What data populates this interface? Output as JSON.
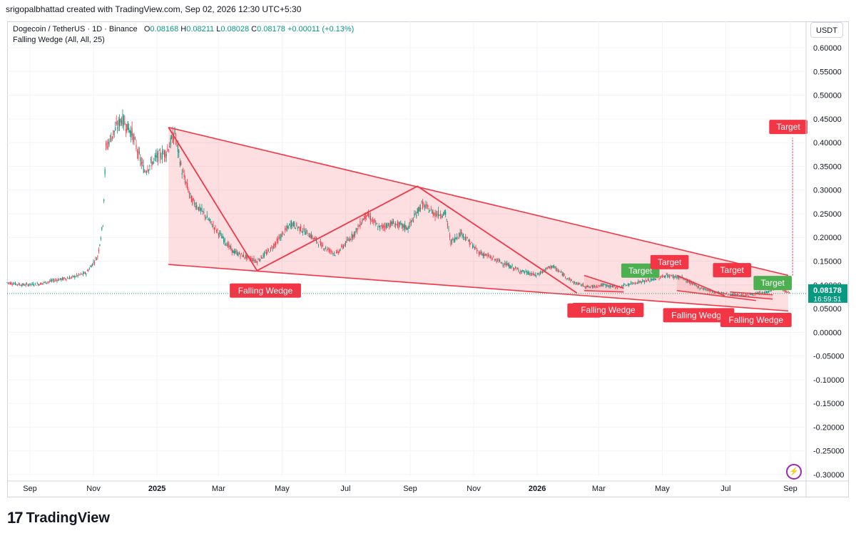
{
  "attribution": "srigopalbhattad created with TradingView.com, Sep 02, 2026 12:30 UTC+5:30",
  "legend": {
    "symbol": "Dogecoin / TetherUS · 1D · Binance",
    "o_label": "O",
    "o_value": "0.08168",
    "h_label": "H",
    "h_value": "0.08211",
    "l_label": "L",
    "l_value": "0.08028",
    "c_label": "C",
    "c_value": "0.08178",
    "change": "+0.00011 (+0.13%)",
    "indicator": "Falling Wedge (All, All, 25)"
  },
  "currency": "USDT",
  "brand": {
    "mark": "17",
    "name": "TradingView"
  },
  "colors": {
    "up": "#089981",
    "down": "#f23645",
    "pattern": "#f23645",
    "fill": "#f23645",
    "target_green": "#4caf50",
    "grid": "#f0f3fa"
  },
  "price_label": {
    "value": "0.08178",
    "countdown": "16:59:51"
  },
  "chart_data": {
    "type": "line",
    "title": "Dogecoin / TetherUS · 1D · Binance",
    "x_labels": [
      "Sep",
      "Nov",
      "2025",
      "Mar",
      "May",
      "Jul",
      "Sep",
      "Nov",
      "2026",
      "Mar",
      "May",
      "Jul",
      "Sep"
    ],
    "x_label_dates": [
      "2024-09-01",
      "2024-11-01",
      "2025-01-01",
      "2025-03-01",
      "2025-05-01",
      "2025-07-01",
      "2025-09-01",
      "2025-11-01",
      "2026-01-01",
      "2026-03-01",
      "2026-05-01",
      "2026-07-01",
      "2026-09-01"
    ],
    "y_ticks": [
      "0.60000",
      "0.55000",
      "0.50000",
      "0.45000",
      "0.40000",
      "0.35000",
      "0.30000",
      "0.25000",
      "0.20000",
      "0.15000",
      "0.10000",
      "0.05000",
      "0.00000",
      "-0.05000",
      "-0.10000",
      "-0.15000",
      "-0.20000",
      "-0.25000",
      "-0.30000"
    ],
    "ylim": [
      -0.3,
      0.6
    ],
    "grid": true,
    "series": [
      {
        "name": "Dogecoin / TetherUS",
        "x": [
          "2024-08-10",
          "2024-08-25",
          "2024-09-10",
          "2024-09-25",
          "2024-10-10",
          "2024-10-25",
          "2024-11-05",
          "2024-11-10",
          "2024-11-13",
          "2024-11-20",
          "2024-11-28",
          "2024-12-08",
          "2024-12-15",
          "2024-12-20",
          "2025-01-01",
          "2025-01-10",
          "2025-01-18",
          "2025-01-25",
          "2025-02-03",
          "2025-02-15",
          "2025-03-01",
          "2025-03-15",
          "2025-04-07",
          "2025-04-20",
          "2025-05-10",
          "2025-05-25",
          "2025-06-10",
          "2025-06-22",
          "2025-07-10",
          "2025-07-21",
          "2025-08-02",
          "2025-08-15",
          "2025-08-30",
          "2025-09-12",
          "2025-09-25",
          "2025-10-05",
          "2025-10-10",
          "2025-10-20",
          "2025-11-05",
          "2025-11-25",
          "2025-12-15",
          "2025-12-31",
          "2026-01-15",
          "2026-02-05",
          "2026-02-20",
          "2026-03-05",
          "2026-03-20",
          "2026-04-05",
          "2026-04-20",
          "2026-05-05",
          "2026-05-20",
          "2026-06-05",
          "2026-06-20",
          "2026-07-05",
          "2026-07-20",
          "2026-08-10",
          "2026-08-20",
          "2026-09-01"
        ],
        "values": [
          0.105,
          0.1,
          0.102,
          0.11,
          0.115,
          0.125,
          0.16,
          0.23,
          0.39,
          0.42,
          0.45,
          0.42,
          0.37,
          0.34,
          0.37,
          0.38,
          0.42,
          0.34,
          0.28,
          0.25,
          0.21,
          0.17,
          0.15,
          0.175,
          0.23,
          0.21,
          0.18,
          0.165,
          0.21,
          0.25,
          0.22,
          0.23,
          0.22,
          0.27,
          0.25,
          0.25,
          0.19,
          0.21,
          0.17,
          0.15,
          0.13,
          0.12,
          0.14,
          0.105,
          0.095,
          0.1,
          0.095,
          0.105,
          0.11,
          0.12,
          0.115,
          0.095,
          0.085,
          0.08,
          0.078,
          0.085,
          0.095,
          0.0818
        ]
      }
    ],
    "wedges": [
      {
        "label": "Falling Wedge",
        "upper": [
          [
            "2025-01-12",
            0.432
          ],
          [
            "2026-08-30",
            0.12
          ]
        ],
        "lower": [
          [
            "2025-01-12",
            0.143
          ],
          [
            "2026-08-30",
            0.045
          ]
        ],
        "zigzag": [
          [
            "2025-01-12",
            0.432
          ],
          [
            "2025-04-07",
            0.13
          ],
          [
            "2025-09-08",
            0.308
          ],
          [
            "2026-02-08",
            0.083
          ]
        ]
      },
      {
        "label": "Falling Wedge",
        "upper": [
          [
            "2026-02-15",
            0.12
          ],
          [
            "2026-03-25",
            0.093
          ]
        ],
        "lower": [
          [
            "2026-02-15",
            0.088
          ],
          [
            "2026-03-25",
            0.085
          ]
        ],
        "zigzag": []
      },
      {
        "label": "Falling Wedge",
        "upper": [
          [
            "2026-05-15",
            0.12
          ],
          [
            "2026-06-30",
            0.077
          ]
        ],
        "lower": [
          [
            "2026-05-15",
            0.088
          ],
          [
            "2026-07-30",
            0.067
          ]
        ],
        "zigzag": []
      },
      {
        "label": "Falling Wedge",
        "upper": [
          [
            "2026-07-05",
            0.085
          ],
          [
            "2026-08-15",
            0.079
          ]
        ],
        "lower": [
          [
            "2026-07-05",
            0.078
          ],
          [
            "2026-08-15",
            0.07
          ]
        ],
        "zigzag": []
      }
    ],
    "wedge_labels": [
      {
        "text": "Falling Wedge",
        "date": "2025-04-15",
        "price": 0.088
      },
      {
        "text": "Falli",
        "date": "2026-02-15",
        "price": 0.046
      },
      {
        "text": "Falling Wedge",
        "date": "2026-03-10",
        "price": 0.047
      },
      {
        "text": "Falling Wedge",
        "date": "2026-06-05",
        "price": 0.036
      },
      {
        "text": "Falling Wedge",
        "date": "2026-07-30",
        "price": 0.026
      }
    ],
    "targets": [
      {
        "text": "Target",
        "date": "2026-04-10",
        "price": 0.13,
        "color": "green"
      },
      {
        "text": "Target",
        "date": "2026-05-08",
        "price": 0.148,
        "color": "red"
      },
      {
        "text": "Target",
        "date": "2026-07-07",
        "price": 0.131,
        "color": "red"
      },
      {
        "text": "Target",
        "date": "2026-08-15",
        "price": 0.104,
        "color": "green"
      },
      {
        "text": "Target",
        "date": "2026-08-30",
        "price": 0.433,
        "color": "red"
      }
    ],
    "current_price": 0.08178
  }
}
